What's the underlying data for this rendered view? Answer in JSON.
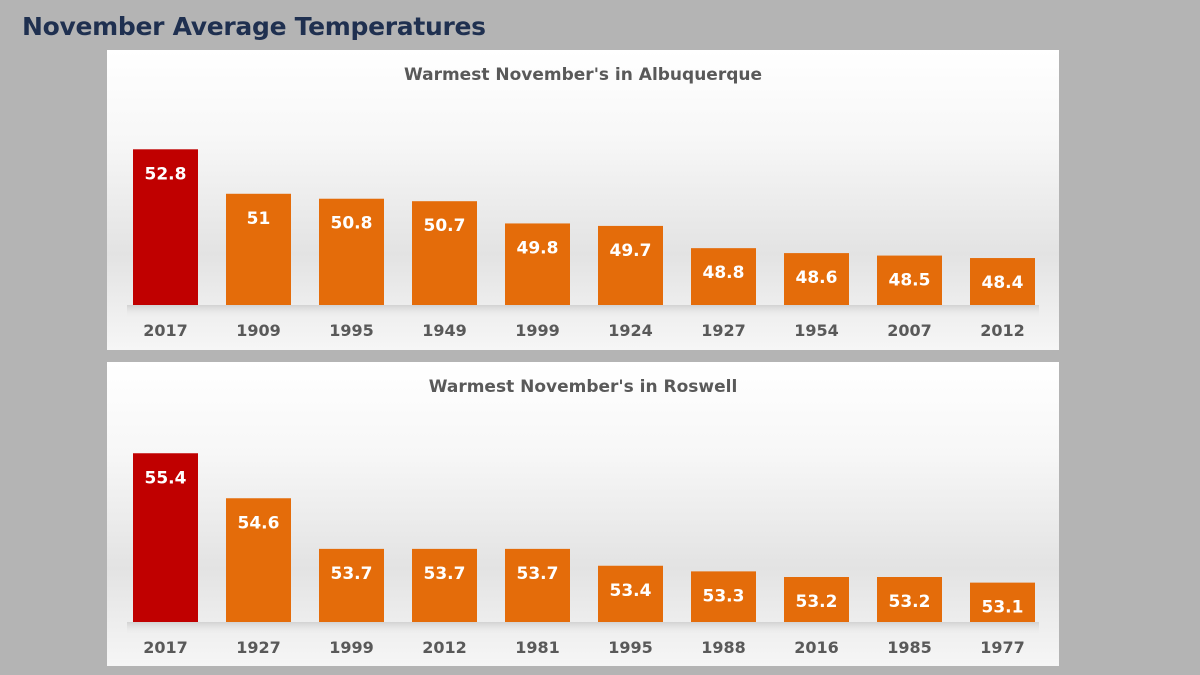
{
  "page": {
    "title": "November Average Temperatures"
  },
  "colors": {
    "highlight": "#c00000",
    "default": "#e46c0a",
    "text_on_bar": "#ffffff",
    "axis_text": "#595959"
  },
  "chart_data": [
    {
      "type": "bar",
      "title": "Warmest November's in Albuquerque",
      "categories": [
        "2017",
        "1909",
        "1995",
        "1949",
        "1999",
        "1924",
        "1927",
        "1954",
        "2007",
        "2012"
      ],
      "values": [
        52.8,
        51,
        50.8,
        50.7,
        49.8,
        49.7,
        48.8,
        48.6,
        48.5,
        48.4
      ],
      "value_labels": [
        "52.8",
        "51",
        "50.8",
        "50.7",
        "49.8",
        "49.7",
        "48.8",
        "48.6",
        "48.5",
        "48.4"
      ],
      "highlight_index": 0,
      "xlabel": "",
      "ylabel": "",
      "ylim": [
        46.5,
        53.5
      ],
      "grid": false,
      "legend": "none"
    },
    {
      "type": "bar",
      "title": "Warmest November's in Roswell",
      "categories": [
        "2017",
        "1927",
        "1999",
        "2012",
        "1981",
        "1995",
        "1988",
        "2016",
        "1985",
        "1977"
      ],
      "values": [
        55.4,
        54.6,
        53.7,
        53.7,
        53.7,
        53.4,
        53.3,
        53.2,
        53.2,
        53.1
      ],
      "value_labels": [
        "55.4",
        "54.6",
        "53.7",
        "53.7",
        "53.7",
        "53.4",
        "53.3",
        "53.2",
        "53.2",
        "53.1"
      ],
      "highlight_index": 0,
      "xlabel": "",
      "ylabel": "",
      "ylim": [
        52.4,
        55.6
      ],
      "grid": false,
      "legend": "none"
    }
  ]
}
